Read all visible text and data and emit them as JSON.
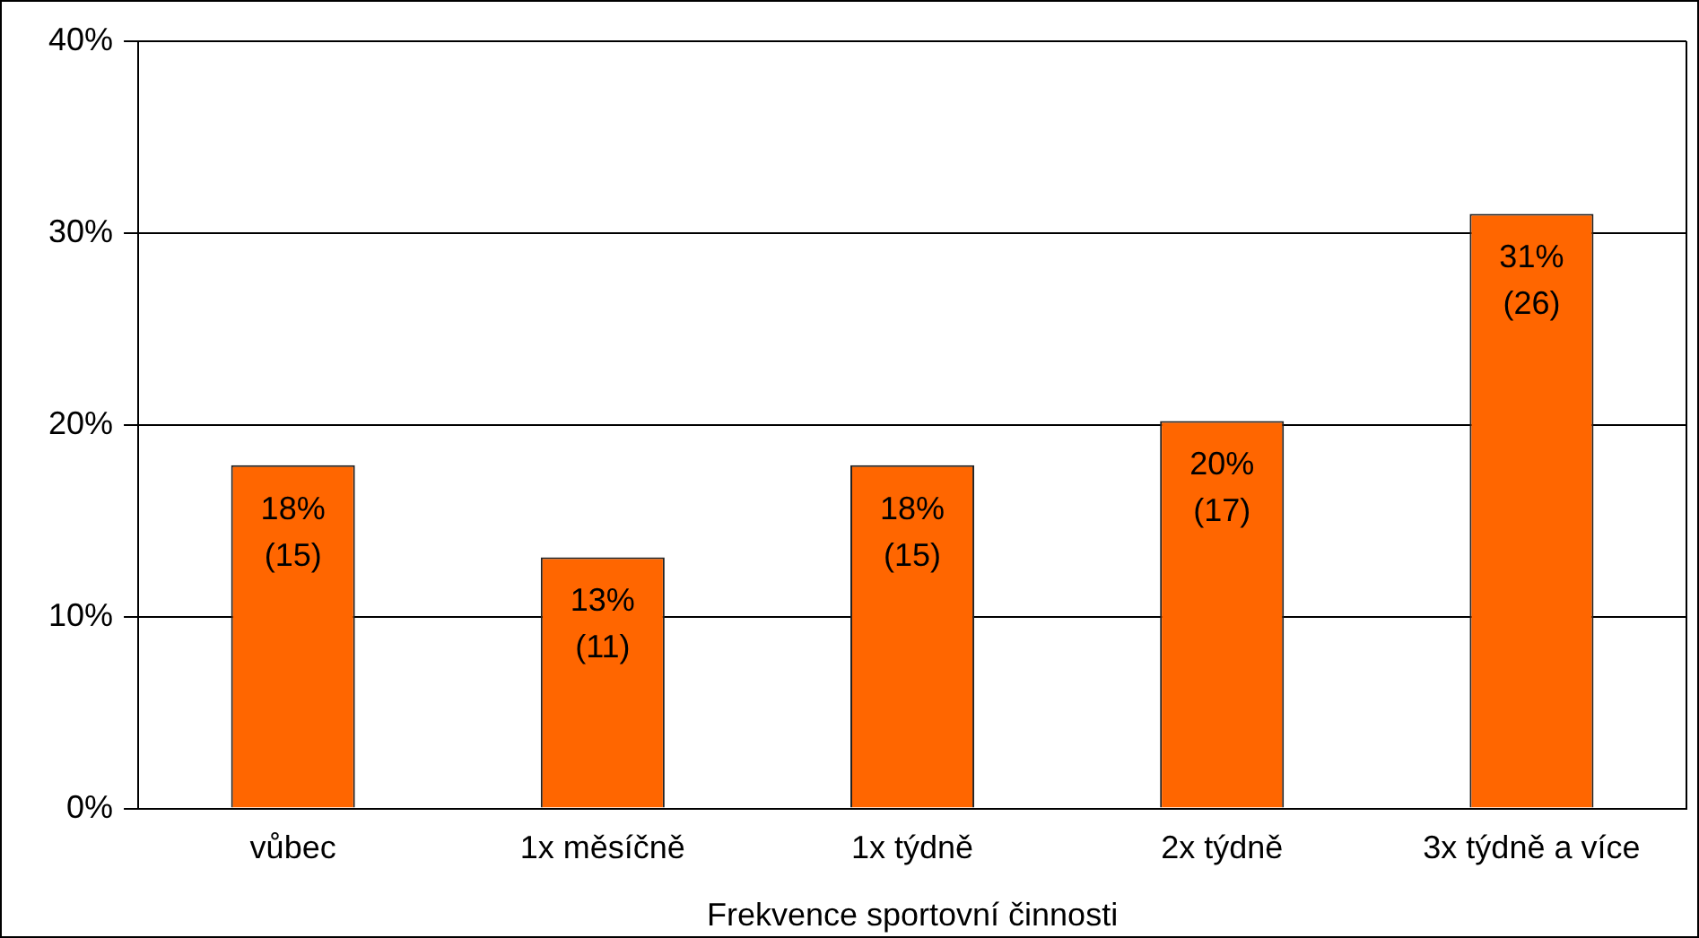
{
  "chart_data": {
    "type": "bar",
    "xlabel": "Frekvence sportovní činnosti",
    "categories": [
      "vůbec",
      "1x měsíčně",
      "1x týdně",
      "2x týdně",
      "3x týdně a více"
    ],
    "values": [
      17.9,
      13.1,
      17.9,
      20.2,
      31.0
    ],
    "color": "#ff6600",
    "value_labels": [
      "18%\n(15)",
      "13%\n(11)",
      "18%\n(15)",
      "20%\n(17)",
      "31%\n(26)"
    ],
    "ylim": [
      0,
      40
    ],
    "yticks": [
      {
        "value": 0,
        "label": "0%"
      },
      {
        "value": 10,
        "label": "10%"
      },
      {
        "value": 20,
        "label": "20%"
      },
      {
        "value": 30,
        "label": "30%"
      },
      {
        "value": 40,
        "label": "40%"
      }
    ],
    "grid": "y",
    "legend": false
  }
}
